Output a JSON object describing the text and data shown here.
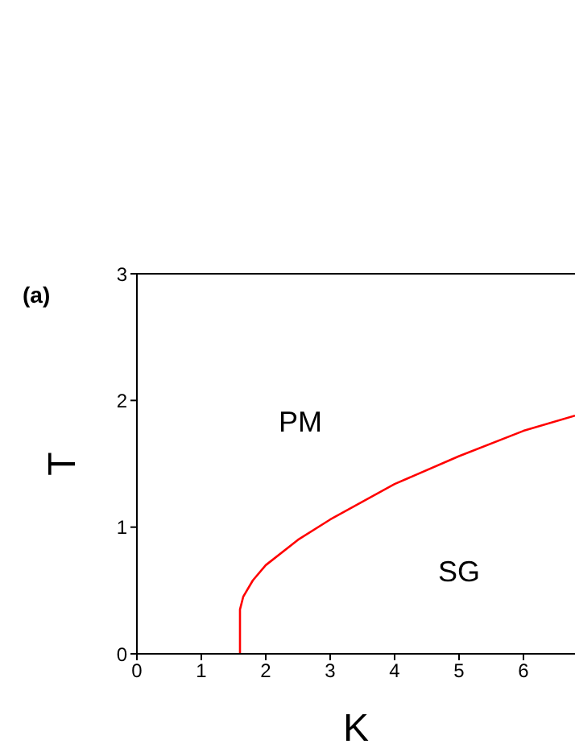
{
  "chart_data": {
    "type": "line",
    "xlabel": "K",
    "ylabel": "T",
    "xlim": [
      0,
      6.8
    ],
    "ylim": [
      0,
      3
    ],
    "xticks": [
      0,
      1,
      2,
      3,
      4,
      5,
      6
    ],
    "yticks": [
      0,
      1,
      2,
      3
    ],
    "grid": false,
    "legend": false,
    "marker": "none",
    "line_style": "solid",
    "annotations": [
      "(a)",
      "PM",
      "SG"
    ],
    "series": [
      {
        "color": "#ff0000",
        "x": [
          1.6,
          1.6,
          1.65,
          1.8,
          2,
          2.5,
          3,
          3.5,
          4,
          5,
          6,
          6.8
        ],
        "values": [
          0,
          0.35,
          0.45,
          0.58,
          0.7,
          0.9,
          1.06,
          1.2,
          1.34,
          1.56,
          1.76,
          1.88
        ]
      }
    ]
  }
}
